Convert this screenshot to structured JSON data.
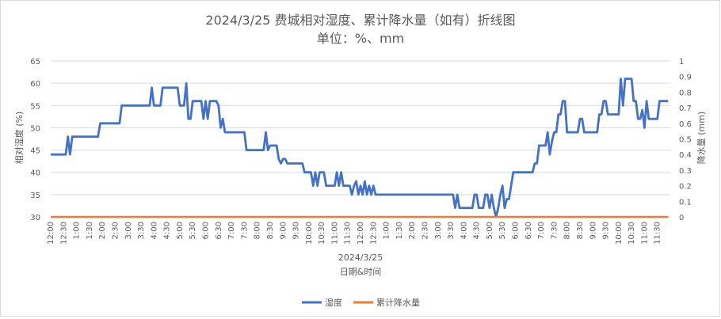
{
  "chart_data": {
    "type": "line",
    "title": "2024/3/25 费城相对湿度、累计降水量（如有）折线图",
    "subtitle": "单位：%、mm",
    "xlabel": "日期&时间",
    "date_label": "2024/3/25",
    "ylabel_left": "相对湿度 (%)",
    "ylabel_right": "降水量 (mm)",
    "ylim_left": [
      30,
      65
    ],
    "ylim_right": [
      0,
      1
    ],
    "y_ticks_left": [
      "30",
      "35",
      "40",
      "45",
      "50",
      "55",
      "60",
      "65"
    ],
    "y_ticks_right": [
      "0",
      "0.1",
      "0.2",
      "0.3",
      "0.4",
      "0.5",
      "0.6",
      "0.7",
      "0.8",
      "0.9",
      "1"
    ],
    "x_tick_labels": [
      "12:00",
      "12:30",
      "1:00",
      "1:30",
      "2:00",
      "2:30",
      "3:00",
      "3:30",
      "4:00",
      "4:30",
      "5:00",
      "5:30",
      "6:00",
      "6:30",
      "7:00",
      "7:30",
      "8:00",
      "8:30",
      "9:00",
      "9:30",
      "10:00",
      "10:30",
      "11:00",
      "11:30",
      "12:00",
      "12:30",
      "1:00",
      "1:30",
      "2:00",
      "2:30",
      "3:00",
      "3:30",
      "4:00",
      "4:30",
      "5:00",
      "5:30",
      "6:00",
      "6:30",
      "7:00",
      "7:30",
      "8:00",
      "8:30",
      "9:00",
      "9:30",
      "10:00",
      "10:30",
      "11:00",
      "11:30"
    ],
    "grid": "horizontal",
    "legend_position": "bottom",
    "series": [
      {
        "name": "湿度",
        "axis": "left",
        "color": "#4472c4",
        "x": [
          0,
          1,
          2,
          3,
          4,
          5,
          6,
          7,
          8,
          9,
          10,
          11,
          12,
          13,
          14,
          15,
          16,
          17,
          18,
          19,
          20,
          21,
          22,
          23,
          24,
          25,
          26,
          27,
          28,
          29,
          30,
          31,
          32,
          33,
          34,
          35,
          36,
          37,
          38,
          39,
          40,
          41,
          42,
          43,
          44,
          45,
          46,
          47,
          48,
          49,
          50,
          51,
          52,
          53,
          54,
          55,
          56,
          57,
          58,
          59,
          60,
          61,
          62,
          63,
          64,
          65,
          66,
          67,
          68,
          69,
          70,
          71,
          72,
          73,
          74,
          75,
          76,
          77,
          78,
          79,
          80,
          81,
          82,
          83,
          84,
          85,
          86,
          87,
          88,
          89,
          90,
          91,
          92,
          93,
          94,
          95
        ],
        "values": [
          44,
          44,
          44,
          44,
          44,
          44,
          44,
          44,
          48,
          44,
          48,
          48,
          48,
          48,
          48,
          48,
          48,
          48,
          48,
          48,
          48,
          48,
          48,
          51,
          51,
          51,
          51,
          51,
          51,
          51,
          51,
          51,
          51,
          55,
          55,
          55,
          55,
          55,
          55,
          55,
          55,
          55,
          55,
          55,
          55,
          55,
          55,
          59,
          55,
          55,
          55,
          55,
          59,
          59,
          59,
          59,
          59,
          59,
          59,
          59,
          55,
          55,
          55,
          60,
          52,
          52,
          56,
          56,
          56,
          56,
          56,
          52,
          56,
          52,
          56,
          56,
          56,
          56,
          55,
          50,
          52,
          49,
          49,
          49,
          49,
          49,
          49,
          49,
          49,
          49,
          49,
          45,
          45,
          45,
          45,
          45
        ],
        "x2": [
          96,
          97,
          98,
          99,
          100,
          101,
          102,
          103,
          104,
          105,
          106,
          107,
          108,
          109,
          110,
          111,
          112,
          113,
          114,
          115,
          116,
          117,
          118,
          119,
          120,
          121,
          122,
          123,
          124,
          125,
          126,
          127,
          128,
          129,
          130,
          131,
          132,
          133,
          134,
          135,
          136,
          137,
          138,
          139,
          140,
          141,
          142,
          143,
          144,
          145,
          146,
          147,
          148,
          149,
          150,
          151,
          152,
          153,
          154,
          155,
          156,
          157,
          158,
          159,
          160,
          161,
          162,
          163,
          164,
          165,
          166,
          167,
          168,
          169,
          170,
          171,
          172,
          173,
          174,
          175,
          176,
          177,
          178,
          179,
          180,
          181,
          182,
          183,
          184,
          185,
          186,
          187,
          188,
          189,
          190,
          191
        ],
        "values2": [
          45,
          45,
          45,
          45,
          49,
          45,
          46,
          46,
          46,
          46,
          43,
          42,
          43,
          43,
          42,
          42,
          42,
          42,
          42,
          42,
          42,
          42,
          40,
          40,
          40,
          40,
          37,
          40,
          37,
          40,
          40,
          40,
          37,
          37,
          37,
          37,
          37,
          40,
          37,
          40,
          37,
          37,
          37,
          37,
          35,
          37,
          38,
          35,
          37,
          35,
          38,
          35,
          37,
          35,
          37,
          35,
          35,
          35,
          35,
          35,
          35,
          35,
          35,
          35,
          35,
          35,
          35,
          35,
          35,
          35,
          35,
          35,
          35,
          35,
          35,
          35,
          35,
          35,
          35,
          35,
          35,
          35,
          35,
          35,
          35,
          35,
          35,
          35,
          35,
          35,
          35,
          35,
          32,
          35,
          32,
          32
        ],
        "x3": [
          192,
          193,
          194,
          195,
          196,
          197,
          198,
          199,
          200,
          201,
          202,
          203,
          204,
          205,
          206,
          207,
          208,
          209,
          210,
          211,
          212,
          213,
          214,
          215,
          216,
          217,
          218,
          219,
          220,
          221,
          222,
          223,
          224,
          225,
          226,
          227,
          228,
          229,
          230,
          231,
          232,
          233,
          234,
          235,
          236,
          237,
          238,
          239,
          240,
          241,
          242,
          243,
          244,
          245,
          246,
          247,
          248,
          249,
          250,
          251,
          252,
          253,
          254,
          255,
          256,
          257,
          258,
          259,
          260,
          261,
          262,
          263,
          264,
          265,
          266,
          267,
          268,
          269,
          270,
          271,
          272,
          273,
          274,
          275,
          276,
          277,
          278,
          279,
          280,
          281,
          282,
          283,
          284,
          285,
          286,
          287
        ],
        "values3": [
          32,
          32,
          32,
          32,
          32,
          35,
          35,
          32,
          32,
          32,
          35,
          35,
          32,
          35,
          32,
          30,
          32,
          35,
          37,
          32,
          34,
          34,
          37,
          40,
          40,
          40,
          40,
          40,
          40,
          40,
          40,
          40,
          40,
          42,
          42,
          46,
          46,
          46,
          46,
          49,
          44,
          47,
          49,
          49,
          53,
          53,
          56,
          56,
          49,
          49,
          49,
          49,
          49,
          49,
          52,
          52,
          49,
          49,
          49,
          49,
          49,
          49,
          49,
          53,
          53,
          56,
          56,
          53,
          53,
          53,
          53,
          53,
          53,
          61,
          55,
          61,
          61,
          61,
          61,
          56,
          56,
          52,
          52,
          54,
          50,
          56,
          52,
          52,
          52,
          52,
          52,
          56,
          56,
          56,
          56,
          56
        ]
      },
      {
        "name": "累计降水量",
        "axis": "right",
        "color": "#ed7d31",
        "x": [
          0,
          287
        ],
        "values": [
          0,
          0
        ]
      }
    ]
  }
}
